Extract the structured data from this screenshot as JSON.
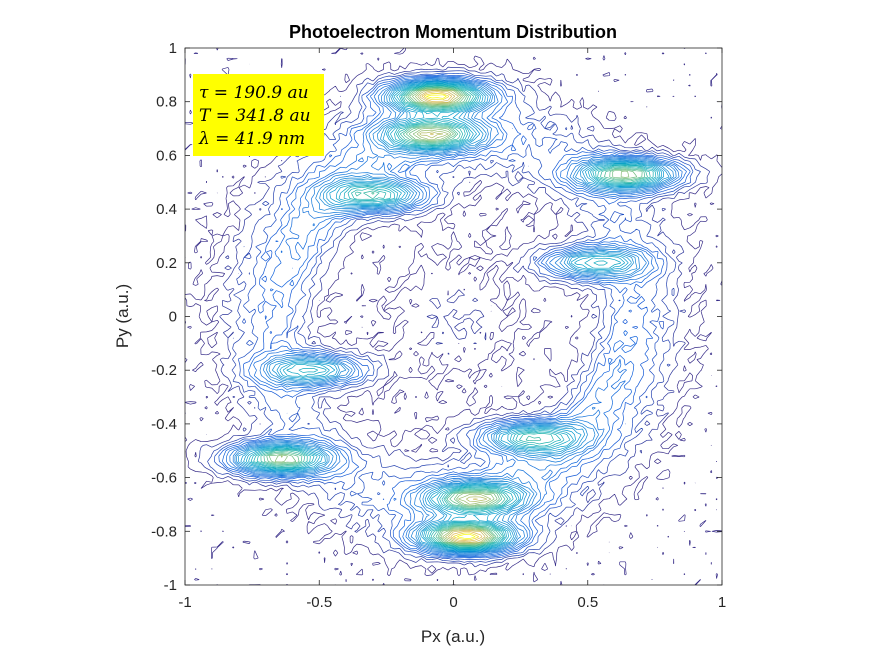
{
  "chart_data": {
    "type": "contour",
    "title": "Photoelectron Momentum Distribution",
    "xlabel": "Px (a.u.)",
    "ylabel": "Py (a.u.)",
    "xlim": [
      -1,
      1
    ],
    "ylim": [
      -1,
      1
    ],
    "xticks": [
      -1,
      -0.5,
      0,
      0.5,
      1
    ],
    "xtick_labels": [
      "-1",
      "-0.5",
      "0",
      "0.5",
      "1"
    ],
    "yticks": [
      1,
      0.8,
      0.6,
      0.4,
      0.2,
      0,
      -0.2,
      -0.4,
      -0.6,
      -0.8,
      -1
    ],
    "ytick_labels": [
      "1",
      "0.8",
      "0.6",
      "0.4",
      "0.2",
      "0",
      "-0.2",
      "-0.4",
      "-0.6",
      "-0.8",
      "-1"
    ],
    "grid": false,
    "colormap": "parula",
    "colors": {
      "low": "#1a1a8c",
      "mid": "#3a7bd5",
      "high": "#f5d020",
      "annotation_bg": "#ffff00"
    },
    "annotation": {
      "lines": [
        "τ = 190.9 au",
        "T = 341.8 au",
        "λ = 41.9 nm"
      ],
      "placement": "top-left"
    },
    "features": [
      {
        "px": -0.06,
        "py": 0.82,
        "intensity": 1.0
      },
      {
        "px": -0.08,
        "py": 0.68,
        "intensity": 0.75
      },
      {
        "px": 0.05,
        "py": -0.82,
        "intensity": 1.0
      },
      {
        "px": 0.08,
        "py": -0.68,
        "intensity": 0.75
      },
      {
        "px": 0.65,
        "py": 0.53,
        "intensity": 0.8
      },
      {
        "px": -0.65,
        "py": -0.53,
        "intensity": 0.8
      },
      {
        "px": -0.28,
        "py": 0.45,
        "intensity": 0.6
      },
      {
        "px": 0.28,
        "py": -0.45,
        "intensity": 0.6
      },
      {
        "px": 0.52,
        "py": 0.2,
        "intensity": 0.55
      },
      {
        "px": -0.52,
        "py": -0.2,
        "intensity": 0.55
      }
    ]
  }
}
